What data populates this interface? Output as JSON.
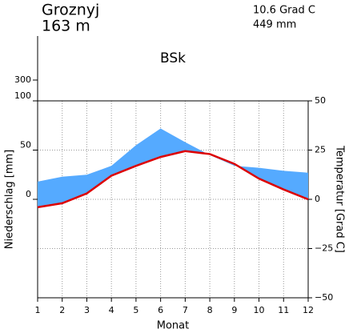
{
  "chart_data": {
    "type": "climate",
    "station": "Groznyj",
    "elevation": "163 m",
    "mean_temperature": "10.6 Grad C",
    "annual_precipitation": "449 mm",
    "climate_class": "BSk",
    "x_label": "Monat",
    "y_label": "Niederschlag [mm]",
    "y2_label": "Temperatur [Grad C]",
    "x": [
      1,
      2,
      3,
      4,
      5,
      6,
      7,
      8,
      9,
      10,
      11,
      12
    ],
    "xlim": [
      1,
      12
    ],
    "xticks": [
      1,
      2,
      3,
      4,
      5,
      6,
      7,
      8,
      9,
      10,
      11,
      12
    ],
    "series": [
      {
        "name": "Niederschlag",
        "color": "#55aaff",
        "values": [
          18,
          23,
          25,
          34,
          55,
          72,
          58,
          45,
          34,
          32,
          29,
          27
        ]
      },
      {
        "name": "Temperatur",
        "color": "#dd0000",
        "axis": "y2",
        "values": [
          -4,
          -2,
          3,
          12,
          17,
          21.5,
          24.5,
          23,
          18,
          10.5,
          5,
          0
        ]
      }
    ],
    "ylim": [
      -100,
      100
    ],
    "yticks": [
      0,
      50,
      100
    ],
    "yticks_upper": [
      300
    ],
    "y2lim": [
      -50,
      50
    ],
    "y2ticks": [
      {
        "value": -50,
        "label": "−50"
      },
      {
        "value": -25,
        "label": "−25"
      },
      0,
      25,
      50
    ],
    "grid": true
  }
}
